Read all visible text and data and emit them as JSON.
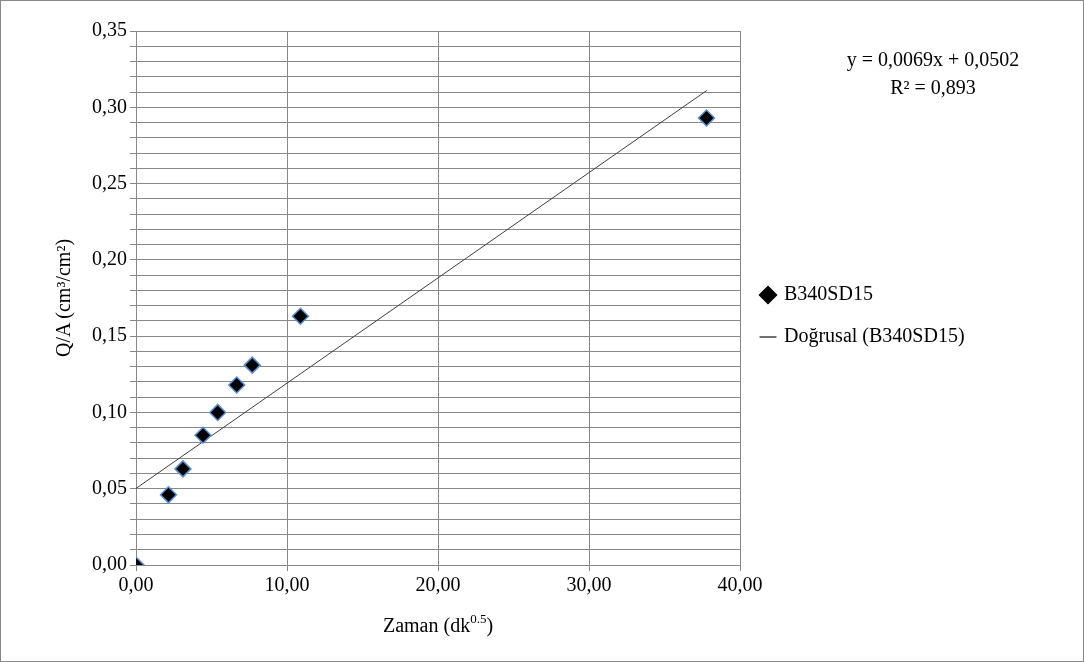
{
  "chart_data": {
    "type": "scatter",
    "xlabel": "Zaman (dk$^{0.5}$)",
    "ylabel": "Q/A (cm³/cm²)",
    "series": [
      {
        "name": "B340SD15",
        "type": "scatter",
        "color": "#000000",
        "marker": "diamond",
        "x": [
          0,
          2.15,
          3.11,
          4.44,
          5.41,
          6.67,
          7.7,
          10.89,
          37.78
        ],
        "values": [
          0,
          0.046,
          0.063,
          0.085,
          0.1,
          0.118,
          0.131,
          0.163,
          0.293
        ]
      },
      {
        "name": "Doğrusal (B340SD15)",
        "type": "line",
        "color": "#404040",
        "marker": "none",
        "x": [
          0,
          37.8
        ],
        "values": [
          0.0502,
          0.311
        ]
      }
    ],
    "xlim": [
      0,
      40
    ],
    "xticks": [
      {
        "value": 0,
        "label": "0,00"
      },
      {
        "value": 10,
        "label": "10,00"
      },
      {
        "value": 20,
        "label": "20,00"
      },
      {
        "value": 30,
        "label": "30,00"
      },
      {
        "value": 40,
        "label": "40,00"
      }
    ],
    "ylim": [
      0,
      0.35
    ],
    "yticks": [
      {
        "value": 0,
        "label": "0,00"
      },
      {
        "value": 0.01,
        "label": null
      },
      {
        "value": 0.02,
        "label": null
      },
      {
        "value": 0.03,
        "label": null
      },
      {
        "value": 0.04,
        "label": null
      },
      {
        "value": 0.05,
        "label": "0,05"
      },
      {
        "value": 0.06,
        "label": null
      },
      {
        "value": 0.07,
        "label": null
      },
      {
        "value": 0.08,
        "label": null
      },
      {
        "value": 0.09,
        "label": null
      },
      {
        "value": 0.1,
        "label": "0,10"
      },
      {
        "value": 0.11,
        "label": null
      },
      {
        "value": 0.12,
        "label": null
      },
      {
        "value": 0.13,
        "label": null
      },
      {
        "value": 0.14,
        "label": null
      },
      {
        "value": 0.15,
        "label": "0,15"
      },
      {
        "value": 0.16,
        "label": null
      },
      {
        "value": 0.17,
        "label": null
      },
      {
        "value": 0.18,
        "label": null
      },
      {
        "value": 0.19,
        "label": null
      },
      {
        "value": 0.2,
        "label": "0,20"
      },
      {
        "value": 0.21,
        "label": null
      },
      {
        "value": 0.22,
        "label": null
      },
      {
        "value": 0.23,
        "label": null
      },
      {
        "value": 0.24,
        "label": null
      },
      {
        "value": 0.25,
        "label": "0,25"
      },
      {
        "value": 0.26,
        "label": null
      },
      {
        "value": 0.27,
        "label": null
      },
      {
        "value": 0.28,
        "label": null
      },
      {
        "value": 0.29,
        "label": null
      },
      {
        "value": 0.3,
        "label": "0,30"
      },
      {
        "value": 0.31,
        "label": null
      },
      {
        "value": 0.32,
        "label": null
      },
      {
        "value": 0.33,
        "label": null
      },
      {
        "value": 0.34,
        "label": null
      },
      {
        "value": 0.35,
        "label": "0,35"
      }
    ],
    "grid": true,
    "legend": "right",
    "annotations": [
      "y = 0,0069x + 0,0502",
      "R² = 0,893"
    ]
  }
}
